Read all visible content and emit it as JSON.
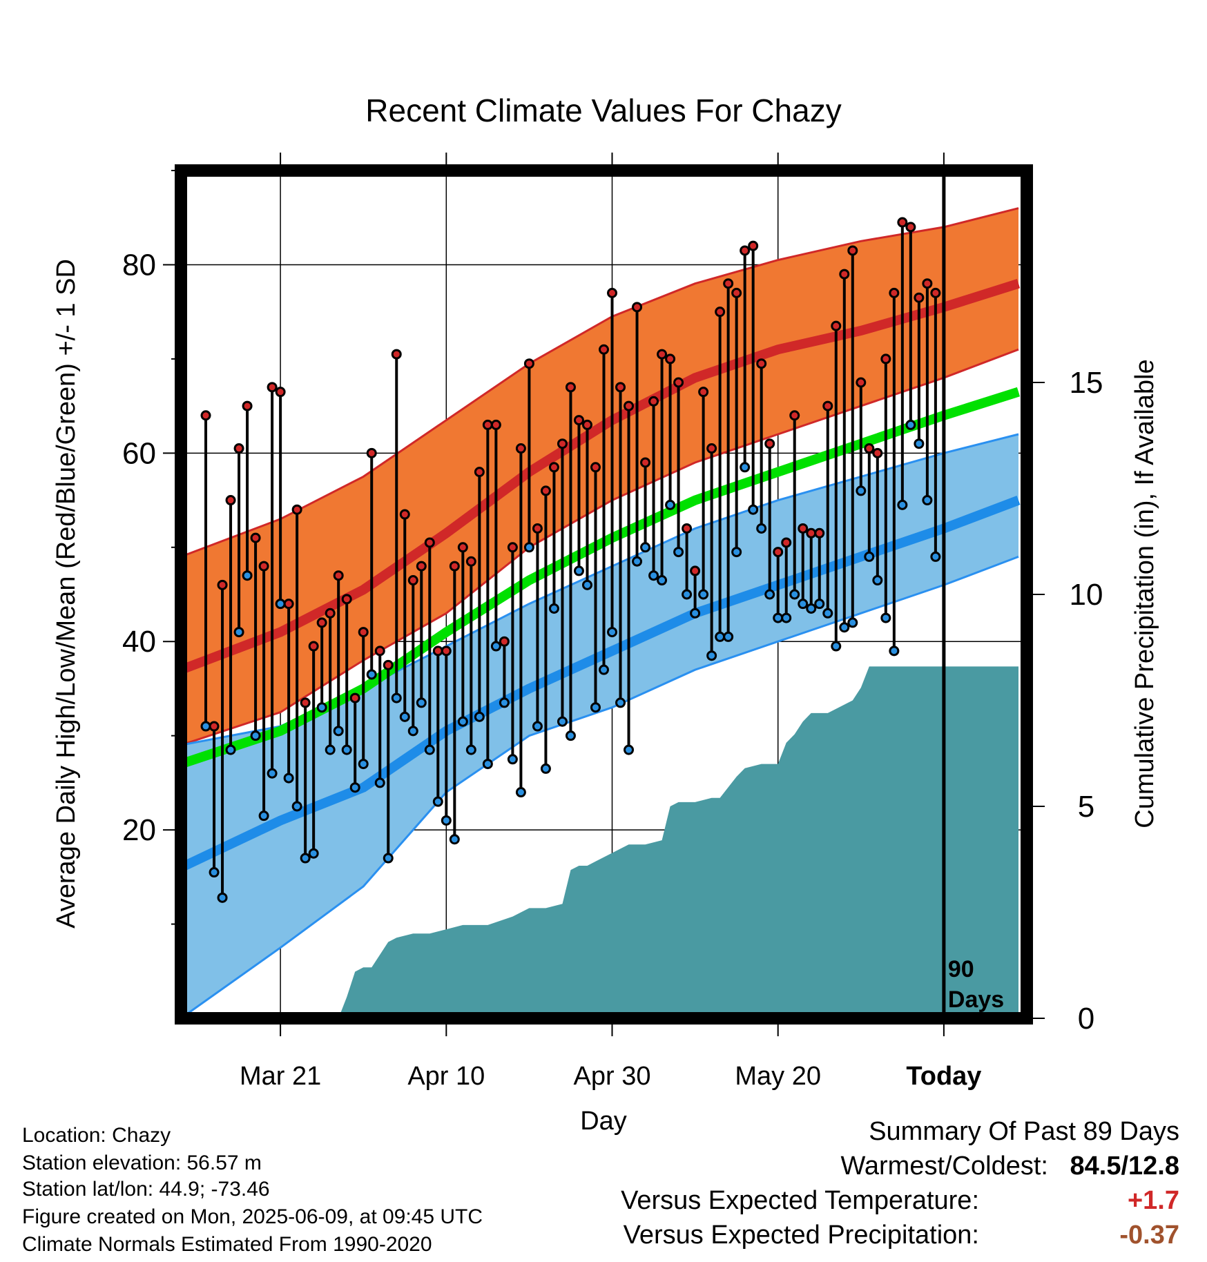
{
  "chart_data": {
    "type": "line",
    "title": "Recent Climate Values For Chazy",
    "xlabel": "Day",
    "ylabel_left": "Average Daily High/Low/Mean (Red/Blue/Green) +/- 1 SD",
    "ylabel_right": "Cumulative Precipitation (in), If Available",
    "xlim_days": [
      -92,
      10
    ],
    "ylim_left": [
      0,
      90
    ],
    "ylim_right": [
      0,
      20
    ],
    "x_tick_labels": [
      {
        "day": -80,
        "label": "Mar 21"
      },
      {
        "day": -60,
        "label": "Apr 10"
      },
      {
        "day": -40,
        "label": "Apr 30"
      },
      {
        "day": -20,
        "label": "May 20"
      },
      {
        "day": 0,
        "label": "Today"
      }
    ],
    "y_ticks_left": [
      20,
      40,
      60,
      80
    ],
    "y_ticks_right": [
      0,
      5,
      10,
      15
    ],
    "today_marker_label_1": "90",
    "today_marker_label_2": "Days",
    "colors": {
      "high_band": "#f07832",
      "high_mean": "#d02828",
      "low_band": "#80c0e8",
      "low_mean": "#1e8ce8",
      "low_edge": "#2a90f0",
      "avg_mean": "#00e000",
      "precip": "#4a9aa2",
      "high_dot": "#d02828",
      "low_dot": "#2a90e0"
    },
    "normals": {
      "days": [
        -92,
        -80,
        -70,
        -60,
        -50,
        -40,
        -30,
        -20,
        -10,
        0,
        9
      ],
      "high_mean": [
        37,
        41,
        45.5,
        51.5,
        58,
        63.5,
        68,
        71,
        73,
        75.5,
        78
      ],
      "high_plus_sd": [
        49,
        53,
        57.5,
        63.5,
        69.5,
        74.5,
        78,
        80.5,
        82.5,
        84,
        86
      ],
      "high_minus_sd": [
        29,
        32.5,
        38,
        43,
        50,
        55,
        59,
        62,
        65,
        68,
        71
      ],
      "low_mean": [
        16,
        21,
        24.5,
        30.5,
        35,
        39,
        43,
        46,
        49,
        52,
        55
      ],
      "low_plus_sd": [
        29,
        31,
        35,
        39.5,
        44,
        48,
        52,
        55,
        57.5,
        60,
        62
      ],
      "low_minus_sd": [
        0,
        7.5,
        14,
        24,
        30,
        33,
        37,
        40,
        43,
        46,
        49
      ],
      "avg_mean": [
        27,
        30.5,
        35,
        41,
        46.5,
        51,
        55,
        58,
        61,
        64,
        66.5
      ]
    },
    "daily_high": [
      64,
      31,
      46,
      55,
      60.5,
      65,
      51,
      48,
      67,
      66.5,
      44,
      54,
      33.5,
      39.5,
      42,
      43,
      47,
      44.5,
      34,
      41,
      60,
      39,
      37.5,
      70.5,
      53.5,
      46.5,
      48,
      50.5,
      39,
      39,
      48,
      50,
      48.5,
      58,
      63,
      63,
      40,
      50,
      60.5,
      69.5,
      52,
      56,
      58.5,
      61,
      67,
      63.5,
      63,
      58.5,
      71,
      77,
      67,
      65,
      75.5,
      59,
      65.5,
      70.5,
      70,
      67.5,
      52,
      47.5,
      66.5,
      60.5,
      75,
      78,
      77,
      81.5,
      82,
      69.5,
      61,
      49.5,
      50.5,
      64,
      52,
      51.5,
      51.5,
      65,
      73.5,
      79,
      81.5,
      67.5,
      60.5,
      60,
      70,
      77,
      84.5,
      84,
      76.5,
      78,
      77
    ],
    "daily_low": [
      31,
      15.5,
      12.8,
      28.5,
      41,
      47,
      30,
      21.5,
      26,
      44,
      25.5,
      22.5,
      17,
      17.5,
      33,
      28.5,
      30.5,
      28.5,
      24.5,
      27,
      36.5,
      25,
      17,
      34,
      32,
      30.5,
      33.5,
      28.5,
      23,
      21,
      19,
      31.5,
      28.5,
      32,
      27,
      39.5,
      33.5,
      27.5,
      24,
      50,
      31,
      26.5,
      43.5,
      31.5,
      30,
      47.5,
      46,
      33,
      37,
      41,
      33.5,
      28.5,
      48.5,
      50,
      47,
      46.5,
      54.5,
      49.5,
      45,
      43,
      45,
      38.5,
      40.5,
      40.5,
      49.5,
      58.5,
      54,
      52,
      45,
      42.5,
      42.5,
      45,
      44,
      43.5,
      44,
      43,
      39.5,
      41.5,
      42,
      56,
      49,
      46.5,
      42.5,
      39,
      54.5,
      63,
      61,
      55,
      49
    ],
    "precip": {
      "days": [
        -92,
        -73,
        -72,
        -71,
        -70,
        -69,
        -67,
        -66,
        -64,
        -62,
        -60,
        -58,
        -55,
        -52,
        -51,
        -50,
        -48,
        -46,
        -45,
        -44,
        -43,
        -42,
        -40,
        -39,
        -38,
        -36,
        -34,
        -33,
        -32,
        -30,
        -28,
        -27,
        -25,
        -24,
        -22,
        -21,
        -20,
        -19,
        -18,
        -17,
        -16,
        -15,
        -14,
        -13,
        -12,
        -11,
        -10,
        -9,
        -8,
        9
      ],
      "cumulative": [
        0,
        0,
        0.5,
        1.1,
        1.2,
        1.2,
        1.8,
        1.9,
        2.0,
        2.0,
        2.1,
        2.2,
        2.2,
        2.4,
        2.5,
        2.6,
        2.6,
        2.7,
        3.5,
        3.6,
        3.6,
        3.7,
        3.9,
        4.0,
        4.1,
        4.1,
        4.2,
        5.0,
        5.1,
        5.1,
        5.2,
        5.2,
        5.7,
        5.9,
        6.0,
        6.0,
        6.0,
        6.5,
        6.7,
        7.0,
        7.2,
        7.2,
        7.2,
        7.3,
        7.4,
        7.5,
        7.8,
        8.3,
        8.3,
        8.3
      ]
    }
  },
  "info": {
    "location": "Location: Chazy",
    "elevation": "Station elevation: 56.57 m",
    "latlon": "Station lat/lon: 44.9; -73.46",
    "created": "Figure created on Mon, 2025-06-09, at 09:45 UTC",
    "normals_note": "Climate Normals Estimated From 1990-2020"
  },
  "summary": {
    "title": "Summary Of Past 89 Days",
    "warmest_coldest_label": "Warmest/Coldest:",
    "warmest_coldest_value": "84.5/12.8",
    "temp_label": "Versus Expected Temperature:",
    "temp_value": "+1.7",
    "temp_color": "#d02828",
    "precip_label": "Versus Expected Precipitation:",
    "precip_value": "-0.37",
    "precip_color": "#a0522d"
  }
}
